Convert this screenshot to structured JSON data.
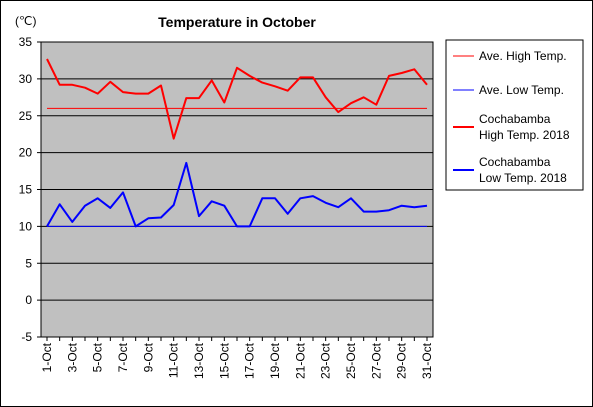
{
  "chart_data": {
    "type": "line",
    "title": "Temperature in October",
    "unit_label": "(℃)",
    "ylim": [
      -5,
      35
    ],
    "y_ticks": [
      35,
      30,
      25,
      20,
      15,
      10,
      5,
      0,
      -5
    ],
    "x": [
      "1-Oct",
      "2-Oct",
      "3-Oct",
      "4-Oct",
      "5-Oct",
      "6-Oct",
      "7-Oct",
      "8-Oct",
      "9-Oct",
      "10-Oct",
      "11-Oct",
      "12-Oct",
      "13-Oct",
      "14-Oct",
      "15-Oct",
      "16-Oct",
      "17-Oct",
      "18-Oct",
      "19-Oct",
      "20-Oct",
      "21-Oct",
      "22-Oct",
      "23-Oct",
      "24-Oct",
      "25-Oct",
      "26-Oct",
      "27-Oct",
      "28-Oct",
      "29-Oct",
      "30-Oct",
      "31-Oct"
    ],
    "x_tick_labels": [
      "1-Oct",
      "3-Oct",
      "5-Oct",
      "7-Oct",
      "9-Oct",
      "11-Oct",
      "13-Oct",
      "15-Oct",
      "17-Oct",
      "19-Oct",
      "21-Oct",
      "23-Oct",
      "25-Oct",
      "27-Oct",
      "29-Oct",
      "31-Oct"
    ],
    "grid": true,
    "legend_position": "right",
    "series": [
      {
        "name": "Ave. High Temp.",
        "color": "#ff0000",
        "style": "thin",
        "values": [
          26,
          26,
          26,
          26,
          26,
          26,
          26,
          26,
          26,
          26,
          26,
          26,
          26,
          26,
          26,
          26,
          26,
          26,
          26,
          26,
          26,
          26,
          26,
          26,
          26,
          26,
          26,
          26,
          26,
          26,
          26
        ]
      },
      {
        "name": "Ave. Low Temp.",
        "color": "#0000ff",
        "style": "thin",
        "values": [
          10,
          10,
          10,
          10,
          10,
          10,
          10,
          10,
          10,
          10,
          10,
          10,
          10,
          10,
          10,
          10,
          10,
          10,
          10,
          10,
          10,
          10,
          10,
          10,
          10,
          10,
          10,
          10,
          10,
          10,
          10
        ]
      },
      {
        "name": "Cochabamba High Temp. 2018",
        "legend_lines": [
          "Cochabamba",
          "High Temp. 2018"
        ],
        "color": "#ff0000",
        "style": "thick",
        "values": [
          32.7,
          29.2,
          29.2,
          28.8,
          28.0,
          29.6,
          28.2,
          28.0,
          28.0,
          29.1,
          21.9,
          27.4,
          27.4,
          29.8,
          26.8,
          31.5,
          30.4,
          29.5,
          29.0,
          28.4,
          30.2,
          30.2,
          27.5,
          25.5,
          26.7,
          27.5,
          26.5,
          30.4,
          30.8,
          31.3,
          29.2
        ]
      },
      {
        "name": "Cochabamba Low Temp. 2018",
        "legend_lines": [
          "Cochabamba",
          "Low Temp. 2018"
        ],
        "color": "#0000ff",
        "style": "thick",
        "values": [
          10.0,
          13.0,
          10.6,
          12.8,
          13.8,
          12.5,
          14.6,
          10.0,
          11.1,
          11.2,
          12.9,
          18.6,
          11.4,
          13.4,
          12.8,
          10.0,
          10.0,
          13.8,
          13.8,
          11.7,
          13.8,
          14.1,
          13.2,
          12.6,
          13.8,
          12.0,
          12.0,
          12.2,
          12.8,
          12.6,
          12.8
        ]
      }
    ]
  }
}
